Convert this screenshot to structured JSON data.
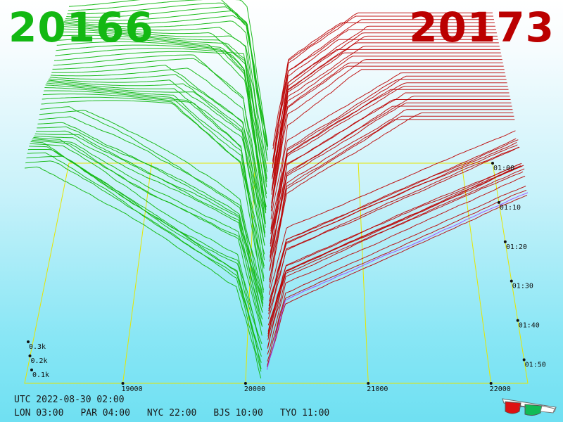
{
  "header": {
    "bid": "20166",
    "ask": "20173"
  },
  "clocks": {
    "utc": "UTC 2022-08-30 02:00",
    "zones": [
      {
        "label": "LON",
        "time": "03:00"
      },
      {
        "label": "PAR",
        "time": "04:00"
      },
      {
        "label": "NYC",
        "time": "22:00"
      },
      {
        "label": "BJS",
        "time": "10:00"
      },
      {
        "label": "TYO",
        "time": "11:00"
      }
    ]
  },
  "colors": {
    "bid_side": "#13b813",
    "ask_side": "#bb0000",
    "axis_frame": "#e6e600",
    "current_row": "#a040ff"
  },
  "icons": {
    "glasses": "3d-glasses-icon"
  },
  "chart_data": {
    "type": "3d-depth-waterfall",
    "x_axis": {
      "ticks": [
        "19000",
        "20000",
        "21000",
        "22000"
      ],
      "range": [
        18200,
        22300
      ]
    },
    "time_axis": {
      "ticks": [
        "01:00",
        "01:10",
        "01:20",
        "01:30",
        "01:40",
        "01:50"
      ],
      "range_minutes": [
        0,
        60
      ]
    },
    "volume_axis": {
      "ticks": [
        "0.1k",
        "0.2k",
        "0.3k"
      ]
    },
    "mid_price": 20170,
    "series": [
      {
        "name": "bid",
        "side": "left",
        "color": "#13b813"
      },
      {
        "name": "ask",
        "side": "right",
        "color": "#bb0000"
      }
    ],
    "snapshots": 52
  }
}
